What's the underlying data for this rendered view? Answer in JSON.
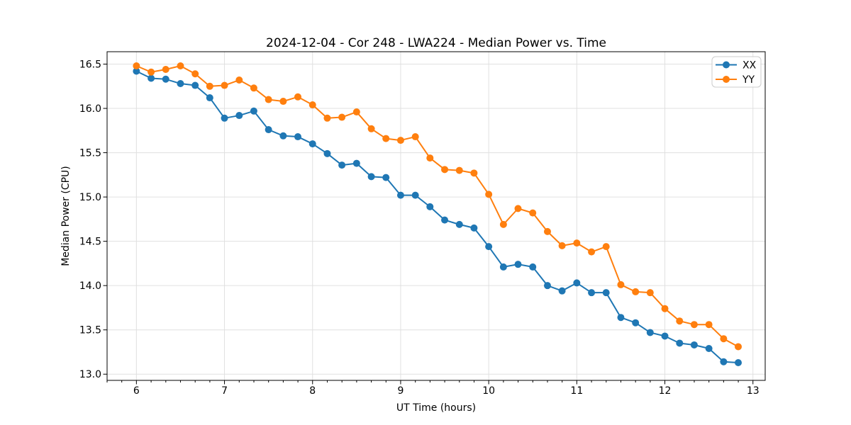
{
  "chart_data": {
    "type": "line",
    "title": "2024-12-04 - Cor 248 - LWA224 - Median Power vs. Time",
    "xlabel": "UT Time (hours)",
    "ylabel": "Median Power (CPU)",
    "xlim": [
      5.667,
      13.139
    ],
    "ylim": [
      12.93,
      16.64
    ],
    "xticks": [
      6,
      7,
      8,
      9,
      10,
      11,
      12,
      13
    ],
    "xtick_labels": [
      "6",
      "7",
      "8",
      "9",
      "10",
      "11",
      "12",
      "13"
    ],
    "yticks": [
      13.0,
      13.5,
      14.0,
      14.5,
      15.0,
      15.5,
      16.0,
      16.5
    ],
    "ytick_labels": [
      "13.0",
      "13.5",
      "14.0",
      "14.5",
      "15.0",
      "15.5",
      "16.0",
      "16.5"
    ],
    "x_minor_tick_step": 0.166667,
    "grid": true,
    "grid_color": "#e0e0e0",
    "spine_color": "#000000",
    "legend_position": "upper-right",
    "marker": "circle",
    "x": [
      6.0,
      6.167,
      6.333,
      6.5,
      6.667,
      6.833,
      7.0,
      7.167,
      7.333,
      7.5,
      7.667,
      7.833,
      8.0,
      8.167,
      8.333,
      8.5,
      8.667,
      8.833,
      9.0,
      9.167,
      9.333,
      9.5,
      9.667,
      9.833,
      10.0,
      10.167,
      10.333,
      10.5,
      10.667,
      10.833,
      11.0,
      11.167,
      11.333,
      11.5,
      11.667,
      11.833,
      12.0,
      12.167,
      12.333,
      12.5,
      12.667,
      12.833
    ],
    "series": [
      {
        "name": "XX",
        "color": "#1f77b4",
        "values": [
          16.42,
          16.34,
          16.33,
          16.28,
          16.26,
          16.12,
          15.89,
          15.92,
          15.97,
          15.76,
          15.69,
          15.68,
          15.6,
          15.49,
          15.36,
          15.38,
          15.23,
          15.22,
          15.02,
          15.02,
          14.89,
          14.74,
          14.69,
          14.65,
          14.44,
          14.21,
          14.24,
          14.21,
          14.0,
          13.94,
          14.03,
          13.92,
          13.92,
          13.64,
          13.58,
          13.47,
          13.43,
          13.35,
          13.33,
          13.29,
          13.14,
          13.13
        ]
      },
      {
        "name": "YY",
        "color": "#ff7f0e",
        "values": [
          16.48,
          16.41,
          16.44,
          16.48,
          16.39,
          16.25,
          16.26,
          16.32,
          16.23,
          16.1,
          16.08,
          16.13,
          16.04,
          15.89,
          15.9,
          15.96,
          15.77,
          15.66,
          15.64,
          15.68,
          15.44,
          15.31,
          15.3,
          15.27,
          15.03,
          14.69,
          14.87,
          14.82,
          14.61,
          14.45,
          14.48,
          14.38,
          14.44,
          14.01,
          13.93,
          13.92,
          13.74,
          13.6,
          13.56,
          13.56,
          13.4,
          13.31
        ]
      }
    ]
  }
}
